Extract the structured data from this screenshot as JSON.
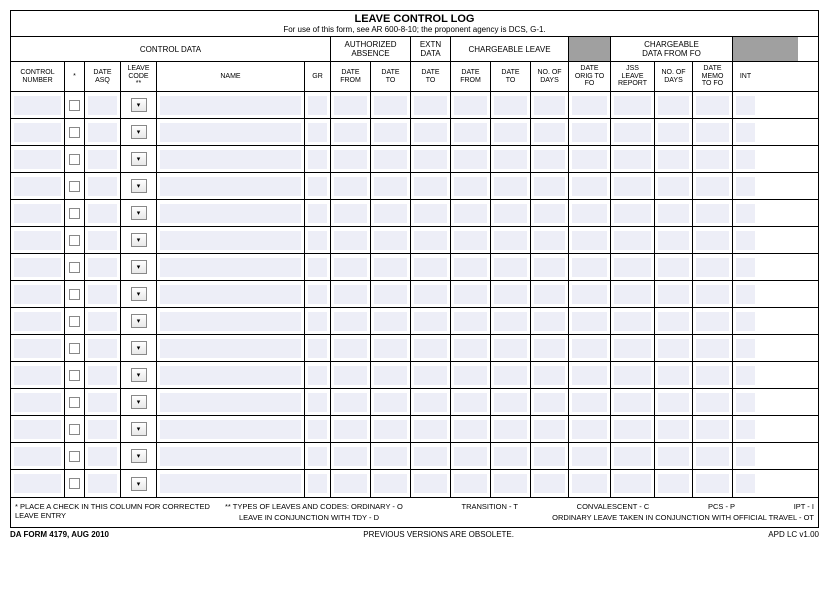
{
  "title": "LEAVE CONTROL LOG",
  "subtitle": "For use of this form, see AR 600-8-10; the proponent agency is DCS, G-1.",
  "groups": {
    "control": "CONTROL DATA",
    "auth": "AUTHORIZED\nABSENCE",
    "extn": "EXTN\nDATA",
    "charge": "CHARGEABLE LEAVE",
    "fo": "CHARGEABLE\nDATA FROM FO"
  },
  "cols": {
    "ctrl": "CONTROL\nNUMBER",
    "star": "*",
    "asq": "DATE\nASQ",
    "code": "LEAVE\nCODE\n**",
    "name": "NAME",
    "gr": "GR",
    "dfrom": "DATE\nFROM",
    "dto": "DATE\nTO",
    "nodays": "NO. OF\nDAYS",
    "orig": "DATE\nORIG TO\nFO",
    "jss": "JSS\nLEAVE\nREPORT",
    "memo": "DATE\nMEMO\nTO FO",
    "int": "INT"
  },
  "rowCount": 15,
  "footnotes": {
    "left": "*   PLACE  A CHECK IN THIS COLUMN FOR CORRECTED LEAVE ENTRY",
    "r1a": "**  TYPES OF LEAVES AND CODES: ORDINARY - O",
    "r1b": "TRANSITION - T",
    "r1c": "CONVALESCENT - C",
    "r1d": "PCS - P",
    "r1e": "IPT - I",
    "r2a": "LEAVE IN CONJUNCTION WITH TDY - D",
    "r2b": "ORDINARY LEAVE TAKEN IN CONJUNCTION WITH OFFICIAL TRAVEL - OT"
  },
  "bottom": {
    "left": "DA FORM 4179, AUG 2010",
    "center": "PREVIOUS VERSIONS ARE OBSOLETE.",
    "right": "APD  LC v1.00"
  },
  "colors": {
    "shaded": "#edeef7",
    "grey": "#a0a0a0",
    "border": "#000000"
  }
}
